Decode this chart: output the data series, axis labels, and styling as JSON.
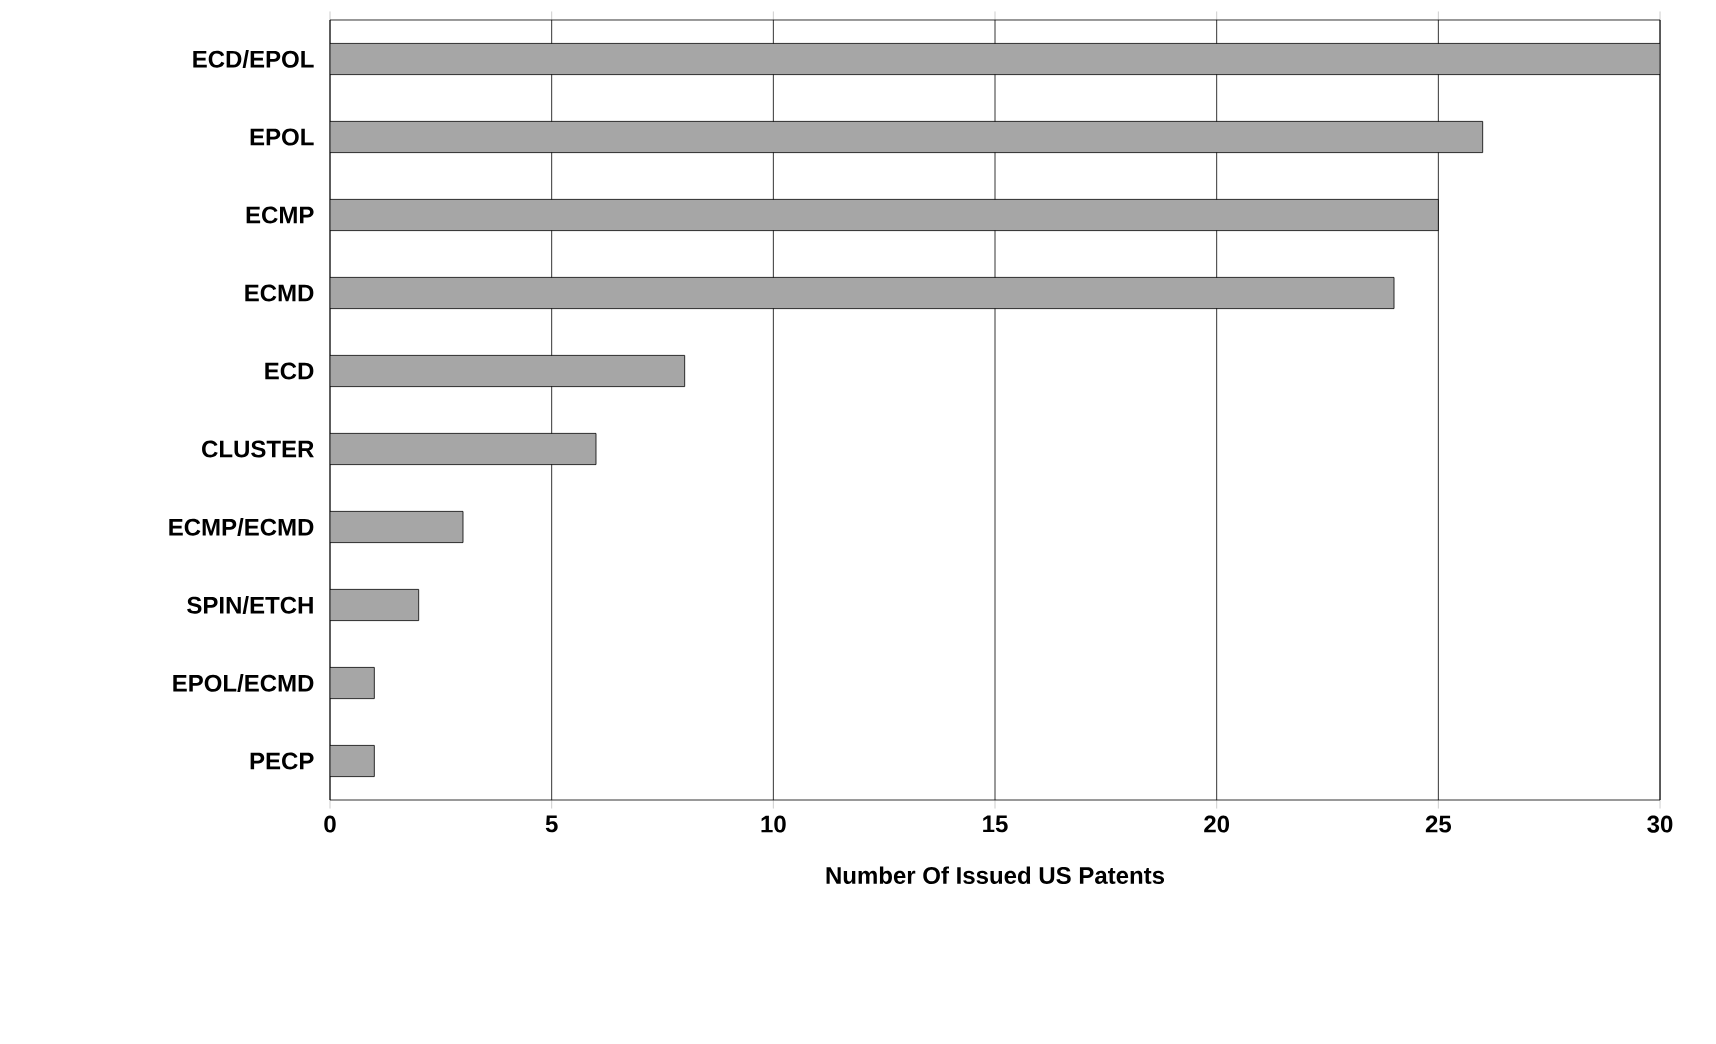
{
  "chart_data": {
    "type": "bar",
    "orientation": "horizontal",
    "categories": [
      "ECD/EPOL",
      "EPOL",
      "ECMP",
      "ECMD",
      "ECD",
      "CLUSTER",
      "ECMP/ECMD",
      "SPIN/ETCH",
      "EPOL/ECMD",
      "PECP"
    ],
    "values": [
      30,
      26,
      25,
      24,
      8,
      6,
      3,
      2,
      1,
      1
    ],
    "color": "#a6a6a6",
    "xlim": [
      0,
      30
    ],
    "xticks": [
      0,
      5,
      10,
      15,
      20,
      25,
      30
    ],
    "xlabel": "Number Of Issued US Patents",
    "grid": "x"
  }
}
